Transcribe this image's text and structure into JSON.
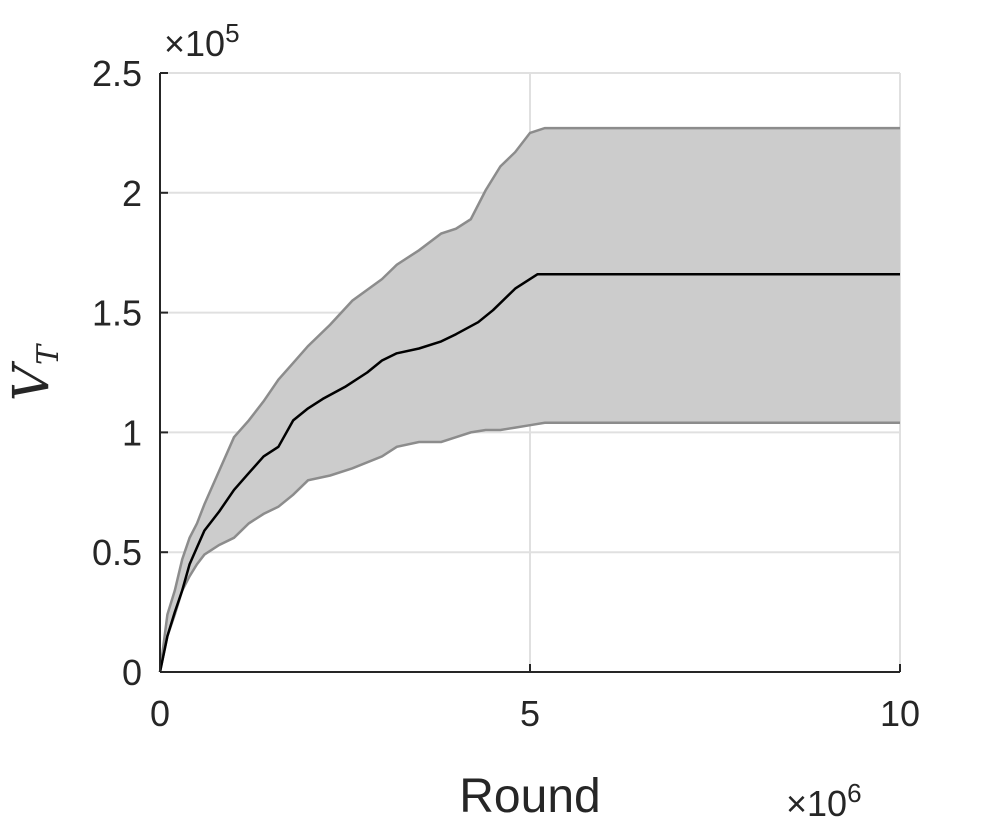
{
  "chart_data": {
    "type": "area",
    "xlabel": "Round",
    "ylabel": "V",
    "ylabel_subscript": "T",
    "x_multiplier": {
      "base": "×10",
      "exponent": "6"
    },
    "y_multiplier": {
      "base": "×10",
      "exponent": "5"
    },
    "xlim": [
      0,
      10000000
    ],
    "ylim": [
      0,
      250000
    ],
    "x_ticks": [
      0,
      5000000,
      10000000
    ],
    "x_tick_labels": [
      "0",
      "5",
      "10"
    ],
    "y_ticks": [
      0,
      50000,
      100000,
      150000,
      200000,
      250000
    ],
    "y_tick_labels": [
      "0",
      "0.5",
      "1",
      "1.5",
      "2",
      "2.5"
    ],
    "grid": true,
    "colors": {
      "mean": "#000000",
      "band_fill": "#cccccc",
      "band_edge": "#8c8c8c",
      "grid": "#e0e0e0",
      "axis": "#262626"
    },
    "series": [
      {
        "role": "mean",
        "x": [
          0,
          100000,
          200000,
          300000,
          400000,
          500000,
          600000,
          800000,
          1000000,
          1200000,
          1400000,
          1600000,
          1800000,
          2000000,
          2200000,
          2500000,
          2800000,
          3000000,
          3200000,
          3500000,
          3800000,
          4000000,
          4300000,
          4500000,
          4800000,
          5000000,
          5100000,
          6000000,
          7000000,
          8000000,
          9000000,
          10000000
        ],
        "y": [
          0,
          15000,
          25000,
          34000,
          45000,
          52000,
          59000,
          67000,
          76000,
          83000,
          90000,
          94000,
          105000,
          110000,
          114000,
          119000,
          125000,
          130000,
          133000,
          135000,
          138000,
          141000,
          146000,
          151000,
          160000,
          164000,
          166000,
          166000,
          166000,
          166000,
          166000,
          166000
        ]
      },
      {
        "role": "band_upper",
        "x": [
          0,
          100000,
          200000,
          300000,
          400000,
          500000,
          600000,
          800000,
          1000000,
          1200000,
          1400000,
          1600000,
          1800000,
          2000000,
          2300000,
          2600000,
          3000000,
          3200000,
          3500000,
          3800000,
          4000000,
          4200000,
          4400000,
          4600000,
          4800000,
          5000000,
          5200000,
          6000000,
          7000000,
          8000000,
          9000000,
          10000000
        ],
        "y": [
          0,
          24000,
          34000,
          47000,
          56000,
          62000,
          70000,
          84000,
          98000,
          105000,
          113000,
          122000,
          129000,
          136000,
          145000,
          155000,
          164000,
          170000,
          176000,
          183000,
          185000,
          189000,
          201000,
          211000,
          217000,
          225000,
          227000,
          227000,
          227000,
          227000,
          227000,
          227000
        ]
      },
      {
        "role": "band_lower",
        "x": [
          0,
          100000,
          200000,
          300000,
          400000,
          500000,
          600000,
          800000,
          1000000,
          1200000,
          1400000,
          1600000,
          1800000,
          2000000,
          2300000,
          2600000,
          3000000,
          3200000,
          3500000,
          3800000,
          4000000,
          4200000,
          4400000,
          4600000,
          4800000,
          5000000,
          5200000,
          6000000,
          7000000,
          8000000,
          9000000,
          10000000
        ],
        "y": [
          0,
          15000,
          24000,
          34000,
          40000,
          45000,
          49000,
          53000,
          56000,
          62000,
          66000,
          69000,
          74000,
          80000,
          82000,
          85000,
          90000,
          94000,
          96000,
          96000,
          98000,
          100000,
          101000,
          101000,
          102000,
          103000,
          104000,
          104000,
          104000,
          104000,
          104000,
          104000
        ]
      }
    ]
  }
}
